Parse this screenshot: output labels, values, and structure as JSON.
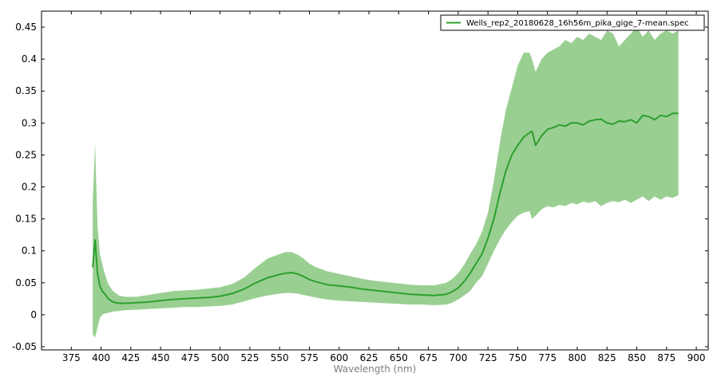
{
  "chart_data": {
    "type": "line",
    "title": "",
    "xlabel": "Wavelength (nm)",
    "ylabel": "",
    "xlim": [
      350,
      910
    ],
    "ylim": [
      -0.055,
      0.475
    ],
    "x_ticks": [
      375,
      400,
      425,
      450,
      475,
      500,
      525,
      550,
      575,
      600,
      625,
      650,
      675,
      700,
      725,
      750,
      775,
      800,
      825,
      850,
      875,
      900
    ],
    "x_tick_labels": [
      "375",
      "400",
      "425",
      "450",
      "475",
      "500",
      "525",
      "550",
      "575",
      "600",
      "625",
      "650",
      "675",
      "700",
      "725",
      "750",
      "775",
      "800",
      "825",
      "850",
      "875",
      "900"
    ],
    "y_ticks": [
      -0.05,
      0,
      0.05,
      0.1,
      0.15,
      0.2,
      0.25,
      0.3,
      0.35,
      0.4,
      0.45
    ],
    "y_tick_labels": [
      "-0.05",
      "0",
      "0.05",
      "0.1",
      "0.15",
      "0.2",
      "0.25",
      "0.3",
      "0.35",
      "0.4",
      "0.45"
    ],
    "grid": false,
    "legend_position": "top-right",
    "colors": {
      "line": "#2ca02c",
      "band": "#9acf92"
    },
    "series": [
      {
        "name": "Wells_rep2_20180628_16h56m_pika_gige_7-mean.spec",
        "x": [
          393,
          395,
          397,
          399,
          401,
          403,
          406,
          410,
          415,
          420,
          430,
          440,
          450,
          460,
          470,
          480,
          490,
          500,
          510,
          520,
          530,
          540,
          550,
          555,
          560,
          565,
          570,
          575,
          580,
          590,
          600,
          610,
          620,
          630,
          640,
          650,
          660,
          670,
          680,
          690,
          695,
          700,
          705,
          710,
          715,
          720,
          725,
          730,
          735,
          740,
          745,
          750,
          755,
          760,
          762,
          765,
          770,
          775,
          780,
          785,
          790,
          795,
          800,
          805,
          810,
          815,
          820,
          825,
          830,
          835,
          840,
          845,
          850,
          855,
          860,
          865,
          870,
          875,
          880,
          885
        ],
        "y": [
          0.074,
          0.117,
          0.065,
          0.045,
          0.037,
          0.033,
          0.025,
          0.02,
          0.018,
          0.018,
          0.019,
          0.02,
          0.022,
          0.024,
          0.025,
          0.026,
          0.027,
          0.029,
          0.033,
          0.04,
          0.05,
          0.058,
          0.063,
          0.065,
          0.066,
          0.064,
          0.06,
          0.055,
          0.052,
          0.047,
          0.045,
          0.043,
          0.04,
          0.038,
          0.036,
          0.034,
          0.032,
          0.031,
          0.03,
          0.032,
          0.036,
          0.042,
          0.052,
          0.065,
          0.08,
          0.095,
          0.12,
          0.15,
          0.19,
          0.225,
          0.25,
          0.265,
          0.278,
          0.285,
          0.287,
          0.265,
          0.28,
          0.29,
          0.293,
          0.297,
          0.295,
          0.3,
          0.3,
          0.297,
          0.303,
          0.305,
          0.306,
          0.3,
          0.298,
          0.303,
          0.302,
          0.305,
          0.3,
          0.312,
          0.31,
          0.305,
          0.312,
          0.31,
          0.315,
          0.315
        ]
      }
    ],
    "band": {
      "x": [
        393,
        395,
        397,
        399,
        401,
        403,
        406,
        410,
        415,
        420,
        430,
        440,
        450,
        460,
        470,
        480,
        490,
        500,
        510,
        520,
        530,
        540,
        550,
        555,
        560,
        565,
        570,
        575,
        580,
        590,
        600,
        610,
        620,
        630,
        640,
        650,
        660,
        670,
        680,
        690,
        695,
        700,
        705,
        710,
        715,
        720,
        725,
        730,
        735,
        740,
        745,
        750,
        755,
        760,
        762,
        765,
        770,
        775,
        780,
        785,
        790,
        795,
        800,
        805,
        810,
        815,
        820,
        825,
        830,
        835,
        840,
        845,
        850,
        855,
        860,
        865,
        870,
        875,
        880,
        885
      ],
      "upper": [
        0.175,
        0.268,
        0.14,
        0.095,
        0.08,
        0.065,
        0.048,
        0.037,
        0.03,
        0.028,
        0.028,
        0.031,
        0.034,
        0.037,
        0.038,
        0.039,
        0.041,
        0.043,
        0.048,
        0.058,
        0.074,
        0.088,
        0.095,
        0.098,
        0.098,
        0.094,
        0.088,
        0.08,
        0.075,
        0.068,
        0.064,
        0.06,
        0.056,
        0.053,
        0.051,
        0.049,
        0.047,
        0.046,
        0.046,
        0.05,
        0.056,
        0.065,
        0.078,
        0.095,
        0.11,
        0.13,
        0.16,
        0.21,
        0.27,
        0.32,
        0.355,
        0.39,
        0.41,
        0.41,
        0.4,
        0.38,
        0.4,
        0.41,
        0.415,
        0.42,
        0.43,
        0.425,
        0.435,
        0.43,
        0.44,
        0.435,
        0.43,
        0.445,
        0.44,
        0.42,
        0.43,
        0.44,
        0.45,
        0.435,
        0.445,
        0.43,
        0.44,
        0.445,
        0.44,
        0.445
      ],
      "lower": [
        -0.03,
        -0.036,
        -0.02,
        -0.005,
        0.0,
        0.002,
        0.003,
        0.005,
        0.006,
        0.007,
        0.008,
        0.009,
        0.01,
        0.011,
        0.012,
        0.012,
        0.013,
        0.014,
        0.016,
        0.021,
        0.026,
        0.03,
        0.033,
        0.034,
        0.034,
        0.033,
        0.031,
        0.029,
        0.027,
        0.024,
        0.022,
        0.021,
        0.02,
        0.019,
        0.018,
        0.017,
        0.016,
        0.016,
        0.015,
        0.016,
        0.019,
        0.024,
        0.03,
        0.037,
        0.05,
        0.06,
        0.08,
        0.1,
        0.118,
        0.133,
        0.145,
        0.155,
        0.16,
        0.162,
        0.15,
        0.155,
        0.165,
        0.17,
        0.168,
        0.172,
        0.17,
        0.175,
        0.173,
        0.177,
        0.175,
        0.178,
        0.17,
        0.175,
        0.178,
        0.176,
        0.18,
        0.175,
        0.18,
        0.185,
        0.178,
        0.185,
        0.18,
        0.185,
        0.183,
        0.187
      ]
    }
  }
}
